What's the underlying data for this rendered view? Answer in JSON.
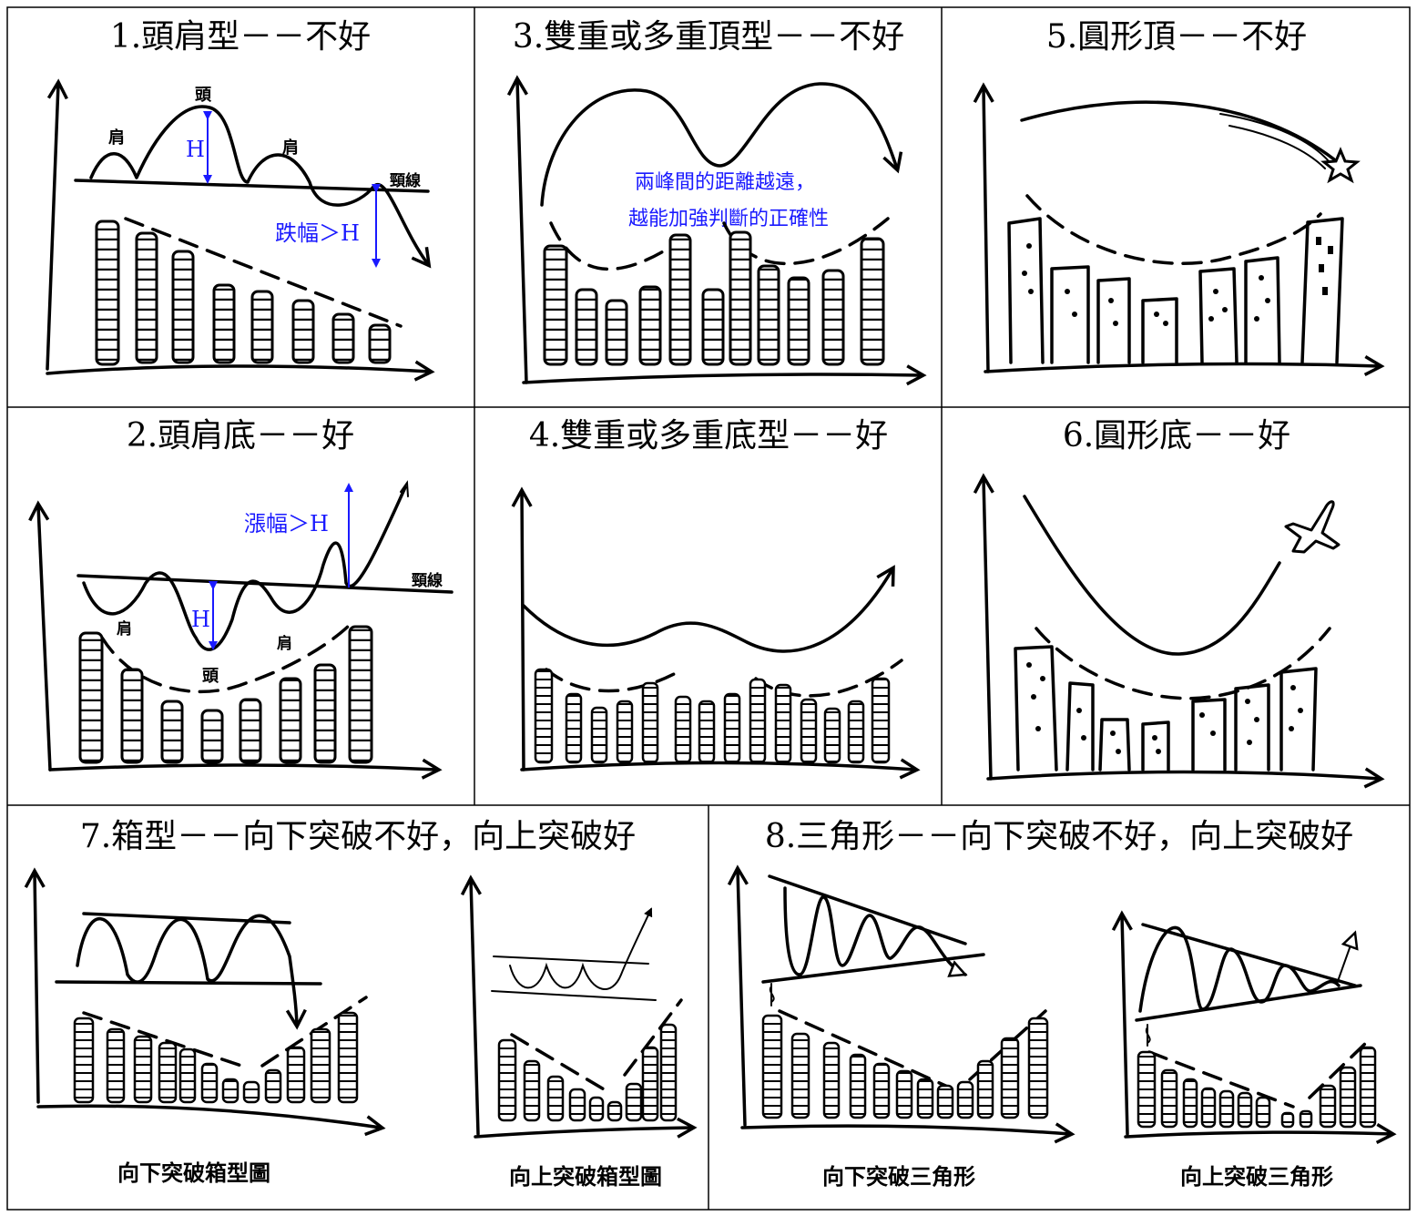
{
  "panels": {
    "p1": {
      "title": "1.頭肩型－－不好",
      "label_head": "頭",
      "label_shoulder_left": "肩",
      "label_shoulder_right": "肩",
      "label_neckline": "頸線",
      "label_h": "H",
      "label_drop": "跌幅＞H"
    },
    "p2": {
      "title": "2.頭肩底－－好",
      "label_head": "頭",
      "label_shoulder_left": "肩",
      "label_shoulder_right": "肩",
      "label_neckline": "頸線",
      "label_h": "H",
      "label_rise": "漲幅＞H"
    },
    "p3": {
      "title": "3.雙重或多重頂型－－不好",
      "note_line1": "兩峰間的距離越遠，",
      "note_line2": "越能加強判斷的正確性"
    },
    "p4": {
      "title": "4.雙重或多重底型－－好"
    },
    "p5": {
      "title": "5.圓形頂－－不好"
    },
    "p6": {
      "title": "6.圓形底－－好"
    },
    "p7": {
      "title": "7.箱型－－向下突破不好，向上突破好",
      "caption_down": "向下突破箱型圖",
      "caption_up": "向上突破箱型圖"
    },
    "p8": {
      "title": "8.三角形－－向下突破不好，向上突破好",
      "caption_down": "向下突破三角形",
      "caption_up": "向上突破三角形"
    }
  },
  "colors": {
    "annotation": "#1a1aff",
    "ink": "#000000"
  }
}
